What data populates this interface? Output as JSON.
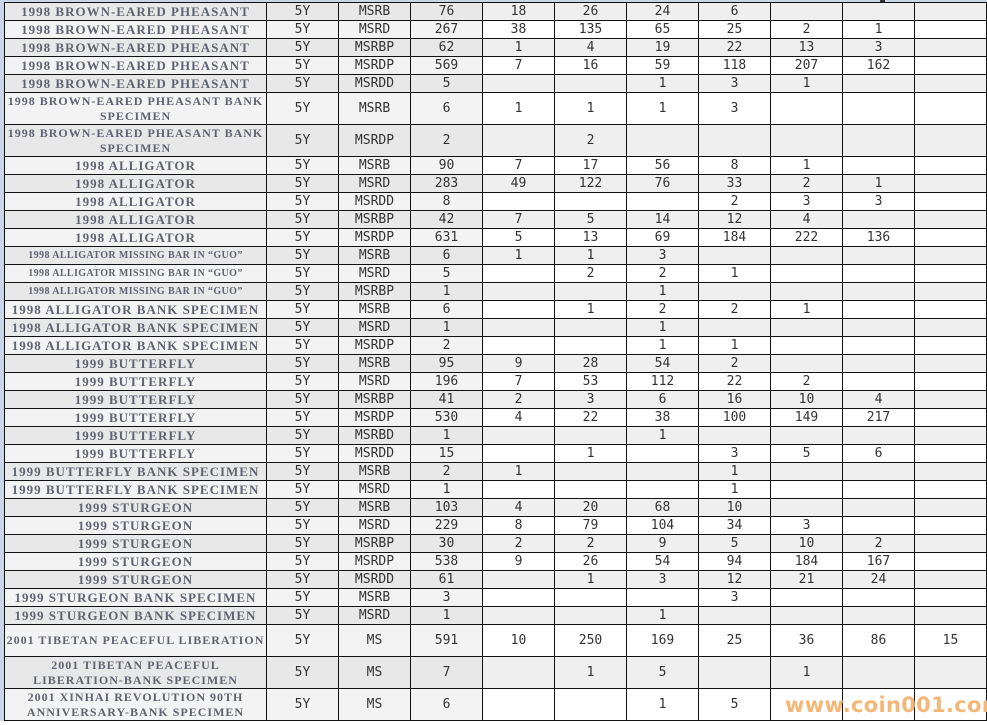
{
  "table": {
    "rows": [
      {
        "name": "1998 BROWN-EARED PHEASANT",
        "denom": "5Y",
        "grade": "MSRB",
        "total": "76",
        "counts": [
          "18",
          "26",
          "24",
          "6",
          "",
          "",
          ""
        ]
      },
      {
        "name": "1998 BROWN-EARED PHEASANT",
        "denom": "5Y",
        "grade": "MSRD",
        "total": "267",
        "counts": [
          "38",
          "135",
          "65",
          "25",
          "2",
          "1",
          ""
        ]
      },
      {
        "name": "1998 BROWN-EARED PHEASANT",
        "denom": "5Y",
        "grade": "MSRBP",
        "total": "62",
        "counts": [
          "1",
          "4",
          "19",
          "22",
          "13",
          "3",
          ""
        ]
      },
      {
        "name": "1998 BROWN-EARED PHEASANT",
        "denom": "5Y",
        "grade": "MSRDP",
        "total": "569",
        "counts": [
          "7",
          "16",
          "59",
          "118",
          "207",
          "162",
          ""
        ]
      },
      {
        "name": "1998 BROWN-EARED PHEASANT",
        "denom": "5Y",
        "grade": "MSRDD",
        "total": "5",
        "counts": [
          "",
          "",
          "1",
          "3",
          "1",
          "",
          ""
        ]
      },
      {
        "name": "1998 BROWN-EARED PHEASANT BANK SPECIMEN",
        "denom": "5Y",
        "grade": "MSRB",
        "total": "6",
        "counts": [
          "1",
          "1",
          "1",
          "3",
          "",
          "",
          ""
        ],
        "tall": true
      },
      {
        "name": "1998 BROWN-EARED PHEASANT BANK SPECIMEN",
        "denom": "5Y",
        "grade": "MSRDP",
        "total": "2",
        "counts": [
          "",
          "2",
          "",
          "",
          "",
          "",
          ""
        ],
        "tall": true
      },
      {
        "name": "1998 ALLIGATOR",
        "denom": "5Y",
        "grade": "MSRB",
        "total": "90",
        "counts": [
          "7",
          "17",
          "56",
          "8",
          "1",
          "",
          ""
        ]
      },
      {
        "name": "1998 ALLIGATOR",
        "denom": "5Y",
        "grade": "MSRD",
        "total": "283",
        "counts": [
          "49",
          "122",
          "76",
          "33",
          "2",
          "1",
          ""
        ]
      },
      {
        "name": "1998 ALLIGATOR",
        "denom": "5Y",
        "grade": "MSRDD",
        "total": "8",
        "counts": [
          "",
          "",
          "",
          "2",
          "3",
          "3",
          ""
        ]
      },
      {
        "name": "1998 ALLIGATOR",
        "denom": "5Y",
        "grade": "MSRBP",
        "total": "42",
        "counts": [
          "7",
          "5",
          "14",
          "12",
          "4",
          "",
          ""
        ]
      },
      {
        "name": "1998 ALLIGATOR",
        "denom": "5Y",
        "grade": "MSRDP",
        "total": "631",
        "counts": [
          "5",
          "13",
          "69",
          "184",
          "222",
          "136",
          ""
        ]
      },
      {
        "name": "1998 ALLIGATOR MISSING BAR IN “GUO”",
        "denom": "5Y",
        "grade": "MSRB",
        "total": "6",
        "counts": [
          "1",
          "1",
          "3",
          "",
          "",
          "",
          ""
        ],
        "small": true
      },
      {
        "name": "1998 ALLIGATOR MISSING BAR IN “GUO”",
        "denom": "5Y",
        "grade": "MSRD",
        "total": "5",
        "counts": [
          "",
          "2",
          "2",
          "1",
          "",
          "",
          ""
        ],
        "small": true
      },
      {
        "name": "1998 ALLIGATOR MISSING BAR IN “GUO”",
        "denom": "5Y",
        "grade": "MSRBP",
        "total": "1",
        "counts": [
          "",
          "",
          "1",
          "",
          "",
          "",
          ""
        ],
        "small": true
      },
      {
        "name": "1998 ALLIGATOR BANK SPECIMEN",
        "denom": "5Y",
        "grade": "MSRB",
        "total": "6",
        "counts": [
          "",
          "1",
          "2",
          "2",
          "1",
          "",
          ""
        ]
      },
      {
        "name": "1998 ALLIGATOR BANK SPECIMEN",
        "denom": "5Y",
        "grade": "MSRD",
        "total": "1",
        "counts": [
          "",
          "",
          "1",
          "",
          "",
          "",
          ""
        ]
      },
      {
        "name": "1998 ALLIGATOR BANK SPECIMEN",
        "denom": "5Y",
        "grade": "MSRDP",
        "total": "2",
        "counts": [
          "",
          "",
          "1",
          "1",
          "",
          "",
          ""
        ]
      },
      {
        "name": "1999 BUTTERFLY",
        "denom": "5Y",
        "grade": "MSRB",
        "total": "95",
        "counts": [
          "9",
          "28",
          "54",
          "2",
          "",
          "",
          ""
        ]
      },
      {
        "name": "1999 BUTTERFLY",
        "denom": "5Y",
        "grade": "MSRD",
        "total": "196",
        "counts": [
          "7",
          "53",
          "112",
          "22",
          "2",
          "",
          ""
        ]
      },
      {
        "name": "1999 BUTTERFLY",
        "denom": "5Y",
        "grade": "MSRBP",
        "total": "41",
        "counts": [
          "2",
          "3",
          "6",
          "16",
          "10",
          "4",
          ""
        ]
      },
      {
        "name": "1999 BUTTERFLY",
        "denom": "5Y",
        "grade": "MSRDP",
        "total": "530",
        "counts": [
          "4",
          "22",
          "38",
          "100",
          "149",
          "217",
          ""
        ]
      },
      {
        "name": "1999 BUTTERFLY",
        "denom": "5Y",
        "grade": "MSRBD",
        "total": "1",
        "counts": [
          "",
          "",
          "1",
          "",
          "",
          "",
          ""
        ]
      },
      {
        "name": "1999 BUTTERFLY",
        "denom": "5Y",
        "grade": "MSRDD",
        "total": "15",
        "counts": [
          "",
          "1",
          "",
          "3",
          "5",
          "6",
          ""
        ]
      },
      {
        "name": "1999 BUTTERFLY BANK SPECIMEN",
        "denom": "5Y",
        "grade": "MSRB",
        "total": "2",
        "counts": [
          "1",
          "",
          "",
          "1",
          "",
          "",
          ""
        ]
      },
      {
        "name": "1999 BUTTERFLY BANK SPECIMEN",
        "denom": "5Y",
        "grade": "MSRD",
        "total": "1",
        "counts": [
          "",
          "",
          "",
          "1",
          "",
          "",
          ""
        ]
      },
      {
        "name": "1999 STURGEON",
        "denom": "5Y",
        "grade": "MSRB",
        "total": "103",
        "counts": [
          "4",
          "20",
          "68",
          "10",
          "",
          "",
          ""
        ]
      },
      {
        "name": "1999 STURGEON",
        "denom": "5Y",
        "grade": "MSRD",
        "total": "229",
        "counts": [
          "8",
          "79",
          "104",
          "34",
          "3",
          "",
          ""
        ]
      },
      {
        "name": "1999 STURGEON",
        "denom": "5Y",
        "grade": "MSRBP",
        "total": "30",
        "counts": [
          "2",
          "2",
          "9",
          "5",
          "10",
          "2",
          ""
        ]
      },
      {
        "name": "1999 STURGEON",
        "denom": "5Y",
        "grade": "MSRDP",
        "total": "538",
        "counts": [
          "9",
          "26",
          "54",
          "94",
          "184",
          "167",
          ""
        ]
      },
      {
        "name": "1999 STURGEON",
        "denom": "5Y",
        "grade": "MSRDD",
        "total": "61",
        "counts": [
          "",
          "1",
          "3",
          "12",
          "21",
          "24",
          ""
        ]
      },
      {
        "name": "1999 STURGEON BANK SPECIMEN",
        "denom": "5Y",
        "grade": "MSRB",
        "total": "3",
        "counts": [
          "",
          "",
          "",
          "3",
          "",
          "",
          ""
        ]
      },
      {
        "name": "1999 STURGEON BANK SPECIMEN",
        "denom": "5Y",
        "grade": "MSRD",
        "total": "1",
        "counts": [
          "",
          "",
          "1",
          "",
          "",
          "",
          ""
        ]
      },
      {
        "name": "2001 TIBETAN PEACEFUL LIBERATION",
        "denom": "5Y",
        "grade": "MS",
        "total": "591",
        "counts": [
          "10",
          "250",
          "169",
          "25",
          "36",
          "86",
          "15"
        ],
        "tall": true
      },
      {
        "name": "2001 TIBETAN PEACEFUL LIBERATION-BANK SPECIMEN",
        "denom": "5Y",
        "grade": "MS",
        "total": "7",
        "counts": [
          "",
          "1",
          "5",
          "",
          "1",
          "",
          ""
        ],
        "tall": true
      },
      {
        "name": "2001 XINHAI REVOLUTION 90TH ANNIVERSARY-BANK SPECIMEN",
        "denom": "5Y",
        "grade": "MS",
        "total": "6",
        "counts": [
          "",
          "",
          "1",
          "5",
          "",
          "",
          ""
        ],
        "tall": true
      }
    ]
  },
  "watermark": "www.coin001.com",
  "colors": {
    "name_text": "#5e6472",
    "watermark": "#f5b777",
    "row_shade": "#efefef"
  }
}
